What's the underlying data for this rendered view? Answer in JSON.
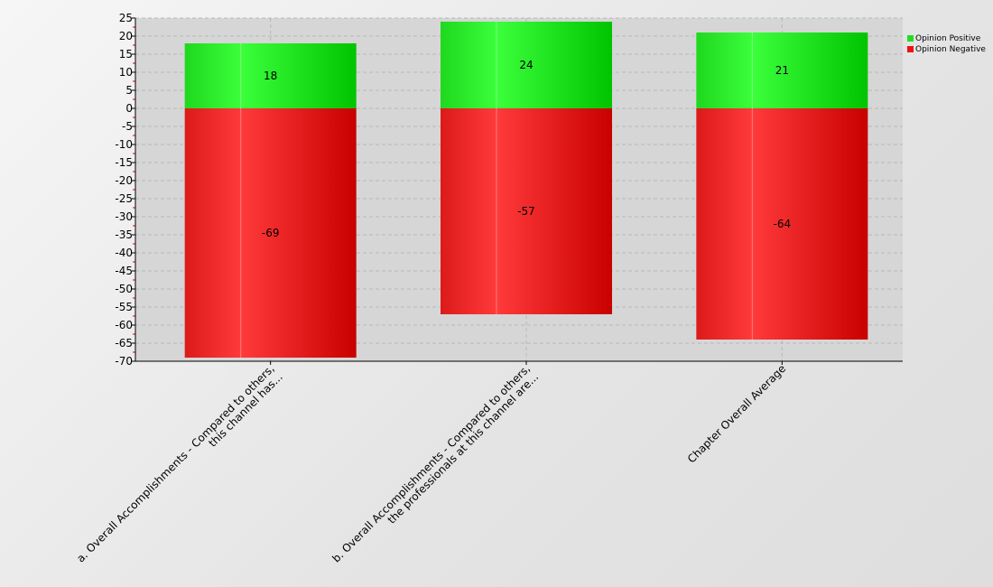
{
  "chart_data": {
    "type": "bar",
    "stacked": true,
    "categories": [
      [
        "a. Overall Accomplishments - Compared to others,",
        "this channel has..."
      ],
      [
        "b. Overall Accomplishments - Compared to others,",
        "the professionals at this channel are..."
      ],
      [
        "Chapter Overall Average"
      ]
    ],
    "series": [
      {
        "name": "Opinion Positive",
        "values": [
          18,
          24,
          21
        ],
        "color": "#22dd22"
      },
      {
        "name": "Opinion Negative",
        "values": [
          -69,
          -57,
          -64
        ],
        "color": "#ee1111"
      }
    ],
    "ylim": [
      -70,
      25
    ],
    "ytick_step": 5,
    "grid": true,
    "legend": "top-right"
  }
}
